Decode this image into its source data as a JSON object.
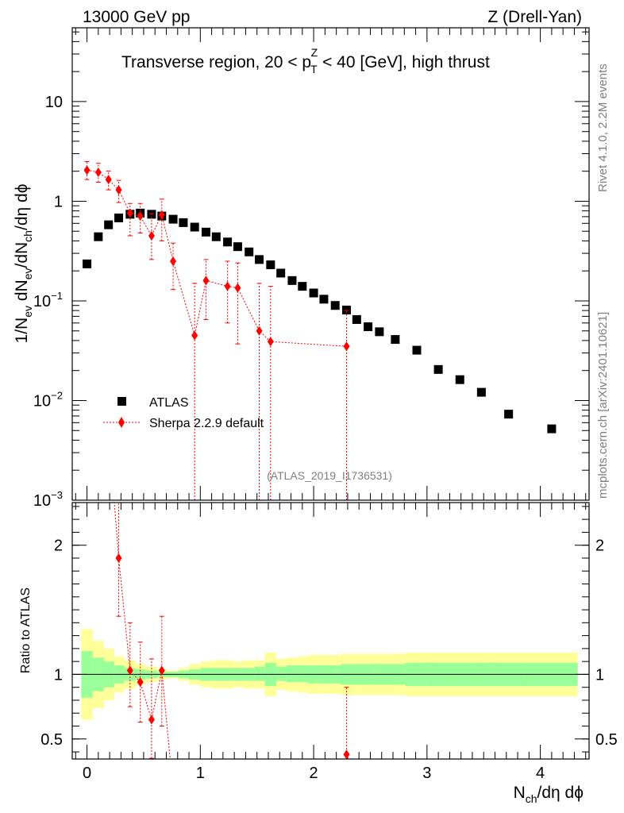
{
  "header": {
    "left": "13000 GeV pp",
    "right": "Z (Drell-Yan)"
  },
  "side_labels": {
    "rivet": "Rivet 4.1.0,  2.2M events",
    "mcplots": "mcplots.cern.ch [arXiv:2401.10621]"
  },
  "chart_data": [
    {
      "type": "scatter",
      "title_prefix": "Transverse region, 20 < p",
      "title_sup": "Z",
      "title_sub": "T",
      "title_suffix": " < 40 [GeV], high thrust",
      "ylabel": "1/N_ev dN_ev/dN_ch/dη dϕ",
      "xlabel": "N_ch/dη dϕ",
      "yscale": "log",
      "ylim": [
        0.001,
        55
      ],
      "xlim": [
        -0.13,
        4.43
      ],
      "y_ticks": [
        {
          "value": 10,
          "label": "10"
        },
        {
          "value": 1,
          "label": "1"
        },
        {
          "value": 0.1,
          "label": "10",
          "exp": "−1"
        },
        {
          "value": 0.01,
          "label": "10",
          "exp": "−2"
        },
        {
          "value": 0.001,
          "label": "10",
          "exp": "−3"
        }
      ],
      "x_ticks": [
        {
          "value": 0,
          "label": "0"
        },
        {
          "value": 1,
          "label": "1"
        },
        {
          "value": 2,
          "label": "2"
        },
        {
          "value": 3,
          "label": "3"
        },
        {
          "value": 4,
          "label": "4"
        }
      ],
      "watermark": "(ATLAS_2019_I1736531)",
      "legend_position": "lower-left",
      "series": [
        {
          "name": "ATLAS",
          "marker": "square",
          "color": "#000000",
          "x": [
            0.0,
            0.1,
            0.19,
            0.28,
            0.38,
            0.47,
            0.57,
            0.66,
            0.76,
            0.85,
            0.95,
            1.05,
            1.14,
            1.24,
            1.33,
            1.43,
            1.52,
            1.62,
            1.71,
            1.81,
            1.9,
            2.0,
            2.09,
            2.19,
            2.29,
            2.38,
            2.48,
            2.58,
            2.72,
            2.91,
            3.1,
            3.29,
            3.48,
            3.72,
            4.1
          ],
          "y": [
            0.235,
            0.44,
            0.58,
            0.68,
            0.74,
            0.76,
            0.74,
            0.71,
            0.66,
            0.61,
            0.55,
            0.49,
            0.44,
            0.39,
            0.35,
            0.31,
            0.26,
            0.23,
            0.19,
            0.16,
            0.14,
            0.12,
            0.104,
            0.09,
            0.081,
            0.065,
            0.055,
            0.049,
            0.041,
            0.032,
            0.0205,
            0.0162,
            0.0121,
            0.0073,
            0.0052
          ]
        },
        {
          "name": "Sherpa 2.2.9 default",
          "marker": "diamond",
          "color": "#ff0000",
          "x": [
            0.0,
            0.1,
            0.19,
            0.28,
            0.38,
            0.47,
            0.57,
            0.66,
            0.76,
            0.95,
            1.05,
            1.24,
            1.33,
            1.52,
            1.62,
            2.29
          ],
          "y": [
            2.05,
            1.95,
            1.65,
            1.3,
            0.76,
            0.71,
            0.45,
            0.73,
            0.25,
            0.045,
            0.16,
            0.14,
            0.135,
            0.05,
            0.039,
            0.035
          ],
          "yerr_low": [
            1.65,
            1.55,
            1.3,
            0.97,
            0.45,
            0.48,
            0.26,
            0.4,
            0.13,
            0.001,
            0.065,
            0.06,
            0.037,
            0.001,
            0.001,
            0.001
          ],
          "yerr_high": [
            2.5,
            2.4,
            2.0,
            1.62,
            0.95,
            0.95,
            0.75,
            1.05,
            0.38,
            0.15,
            0.26,
            0.25,
            0.24,
            0.15,
            0.14,
            0.08
          ]
        }
      ]
    },
    {
      "type": "scatter",
      "ylabel": "Ratio to ATLAS",
      "ylim": [
        0.345,
        2.33
      ],
      "xlim": [
        -0.13,
        4.43
      ],
      "y_ticks": [
        {
          "value": 2,
          "label": "2"
        },
        {
          "value": 1,
          "label": "1"
        },
        {
          "value": 0.5,
          "label": "0.5"
        }
      ],
      "reference_line": 1,
      "band_colors": {
        "inner": "#99ff99",
        "outer": "#ffff99"
      },
      "bands": {
        "edges": [
          -0.05,
          0.05,
          0.15,
          0.24,
          0.33,
          0.43,
          0.52,
          0.62,
          0.71,
          0.81,
          0.9,
          1.0,
          1.1,
          1.19,
          1.29,
          1.38,
          1.48,
          1.57,
          1.67,
          1.76,
          1.86,
          1.95,
          2.05,
          2.14,
          2.24,
          2.33,
          2.43,
          2.53,
          2.62,
          2.81,
          3.0,
          3.19,
          3.38,
          3.57,
          3.86,
          4.33
        ],
        "inner_low": [
          0.82,
          0.87,
          0.9,
          0.93,
          0.95,
          0.96,
          0.97,
          0.98,
          0.98,
          0.97,
          0.96,
          0.95,
          0.95,
          0.95,
          0.95,
          0.95,
          0.95,
          0.91,
          0.95,
          0.94,
          0.94,
          0.93,
          0.93,
          0.93,
          0.92,
          0.92,
          0.92,
          0.92,
          0.92,
          0.91,
          0.91,
          0.91,
          0.91,
          0.91,
          0.91
        ],
        "inner_high": [
          1.18,
          1.13,
          1.1,
          1.07,
          1.05,
          1.04,
          1.03,
          1.02,
          1.02,
          1.03,
          1.04,
          1.05,
          1.05,
          1.05,
          1.05,
          1.05,
          1.06,
          1.09,
          1.06,
          1.07,
          1.07,
          1.07,
          1.07,
          1.07,
          1.08,
          1.08,
          1.08,
          1.08,
          1.08,
          1.09,
          1.09,
          1.09,
          1.09,
          1.09,
          1.09
        ],
        "outer_low": [
          0.65,
          0.74,
          0.8,
          0.86,
          0.89,
          0.92,
          0.94,
          0.96,
          0.97,
          0.95,
          0.92,
          0.9,
          0.89,
          0.89,
          0.9,
          0.89,
          0.89,
          0.83,
          0.88,
          0.87,
          0.86,
          0.85,
          0.85,
          0.85,
          0.84,
          0.84,
          0.84,
          0.84,
          0.84,
          0.83,
          0.83,
          0.83,
          0.83,
          0.83,
          0.83
        ],
        "outer_high": [
          1.35,
          1.26,
          1.2,
          1.14,
          1.11,
          1.08,
          1.06,
          1.04,
          1.03,
          1.05,
          1.08,
          1.1,
          1.11,
          1.11,
          1.1,
          1.11,
          1.11,
          1.17,
          1.12,
          1.13,
          1.14,
          1.15,
          1.15,
          1.15,
          1.16,
          1.16,
          1.16,
          1.16,
          1.16,
          1.17,
          1.17,
          1.17,
          1.17,
          1.17,
          1.17
        ]
      },
      "series": [
        {
          "name": "Sherpa 2.2.9 default",
          "marker": "diamond",
          "color": "#ff0000",
          "x": [
            0.28,
            0.38,
            0.47,
            0.57,
            0.66,
            2.29
          ],
          "y": [
            1.9,
            1.03,
            0.94,
            0.65,
            1.03,
            0.38
          ],
          "yerr_low": [
            1.45,
            0.75,
            0.63,
            0.35,
            0.6,
            0.0
          ],
          "yerr_high": [
            2.4,
            1.4,
            1.25,
            1.12,
            1.45,
            0.9
          ]
        }
      ],
      "offscale_segments": [
        {
          "x1": 0.19,
          "y1": 2.9,
          "x2": 0.28,
          "y2": 1.9
        },
        {
          "x1": 0.66,
          "y1": 1.03,
          "x2": 0.76,
          "y2": 0.1
        }
      ]
    }
  ]
}
